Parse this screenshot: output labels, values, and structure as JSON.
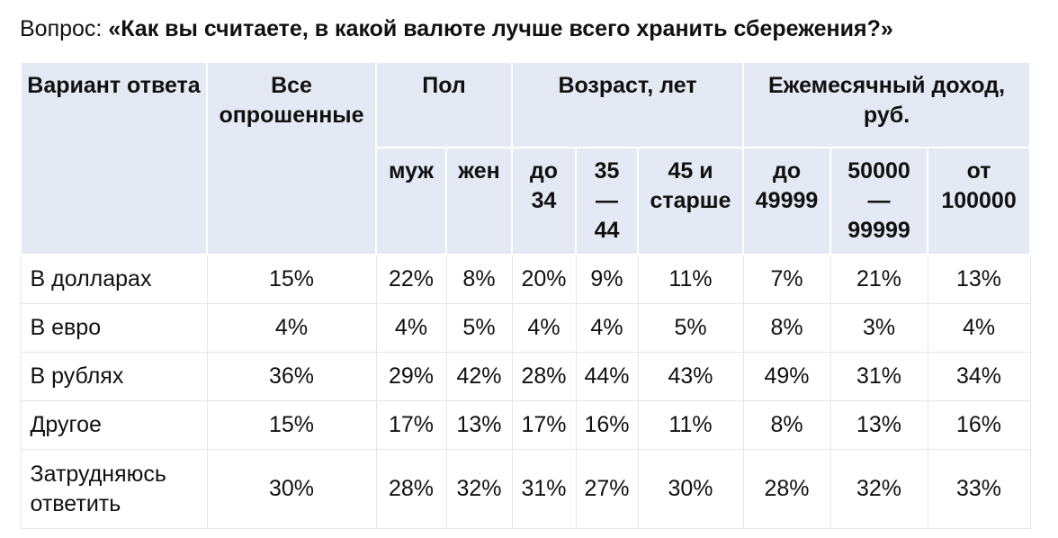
{
  "question": {
    "prefix": "Вопрос: ",
    "text": "«Как вы считаете, в какой валюте лучше всего хранить сбережения?»"
  },
  "header": {
    "answer_option": "Вариант ответа",
    "all_respondents": "Все опрошенные",
    "gender": "Пол",
    "age": "Возраст, лет",
    "income": "Ежемесячный доход, руб.",
    "subcolumns": [
      "муж",
      "жен",
      "до 34",
      "35 — 44",
      "45 и старше",
      "до 49999",
      "50000 — 99999",
      "от 100000"
    ]
  },
  "rows": [
    {
      "label": "В долларах",
      "values": [
        "15%",
        "22%",
        "8%",
        "20%",
        "9%",
        "11%",
        "7%",
        "21%",
        "13%"
      ]
    },
    {
      "label": "В евро",
      "values": [
        "4%",
        "4%",
        "5%",
        "4%",
        "4%",
        "5%",
        "8%",
        "3%",
        "4%"
      ]
    },
    {
      "label": "В рублях",
      "values": [
        "36%",
        "29%",
        "42%",
        "28%",
        "44%",
        "43%",
        "49%",
        "31%",
        "34%"
      ]
    },
    {
      "label": "Другое",
      "values": [
        "15%",
        "17%",
        "13%",
        "17%",
        "16%",
        "11%",
        "8%",
        "13%",
        "16%"
      ]
    },
    {
      "label": "Затрудняюсь ответить",
      "values": [
        "30%",
        "28%",
        "32%",
        "31%",
        "27%",
        "30%",
        "28%",
        "32%",
        "33%"
      ]
    }
  ]
}
